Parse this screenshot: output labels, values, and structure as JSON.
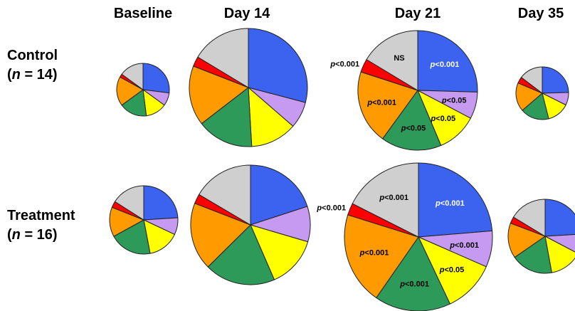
{
  "columns": [
    "Baseline",
    "Day 14",
    "Day 21",
    "Day 35"
  ],
  "rows": [
    {
      "name": "Control",
      "n_label": "n",
      "n_rest": " = 14)"
    },
    {
      "name": "Treatment",
      "n_label": "n",
      "n_rest": " = 16)"
    }
  ],
  "colors": {
    "blue": "#3b63f0",
    "violet": "#c79af2",
    "yellow": "#ffff00",
    "green": "#2e9a5a",
    "orange": "#ff9a00",
    "red": "#ff0000",
    "gray": "#cfcfcf"
  },
  "chart_data": {
    "type": "pie",
    "category_order": [
      "blue",
      "violet",
      "yellow",
      "green",
      "orange",
      "red",
      "gray"
    ],
    "pies": [
      {
        "row": "Control",
        "column": "Baseline",
        "values": [
          27,
          8,
          13,
          17,
          18,
          2,
          15
        ],
        "labels": []
      },
      {
        "row": "Control",
        "column": "Day 14",
        "values": [
          32,
          8,
          14,
          17,
          18,
          3,
          18
        ],
        "labels": []
      },
      {
        "row": "Control",
        "column": "Day 21",
        "values": [
          28,
          8,
          12,
          18,
          22,
          4,
          18
        ],
        "labels": [
          "p<0.001",
          "p<0.05",
          "p<0.05",
          "p<0.05",
          "p<0.001",
          "p<0.001",
          "NS"
        ]
      },
      {
        "row": "Control",
        "column": "Day 35",
        "values": [
          25,
          8,
          14,
          18,
          18,
          4,
          15
        ],
        "labels": []
      },
      {
        "row": "Treatment",
        "column": "Baseline",
        "values": [
          24,
          8,
          15,
          20,
          14,
          3,
          16
        ],
        "labels": []
      },
      {
        "row": "Treatment",
        "column": "Day 14",
        "values": [
          23,
          11,
          16,
          22,
          21,
          3,
          19
        ],
        "labels": []
      },
      {
        "row": "Treatment",
        "column": "Day 21",
        "values": [
          27,
          9,
          13,
          19,
          23,
          3,
          20
        ],
        "labels": [
          "p<0.001",
          "p<0.001",
          "p<0.05",
          "p<0.001",
          "p<0.001",
          "p<0.001",
          "p<0.001"
        ]
      },
      {
        "row": "Treatment",
        "column": "Day 35",
        "values": [
          25,
          9,
          15,
          19,
          16,
          3,
          17
        ],
        "labels": []
      }
    ]
  }
}
